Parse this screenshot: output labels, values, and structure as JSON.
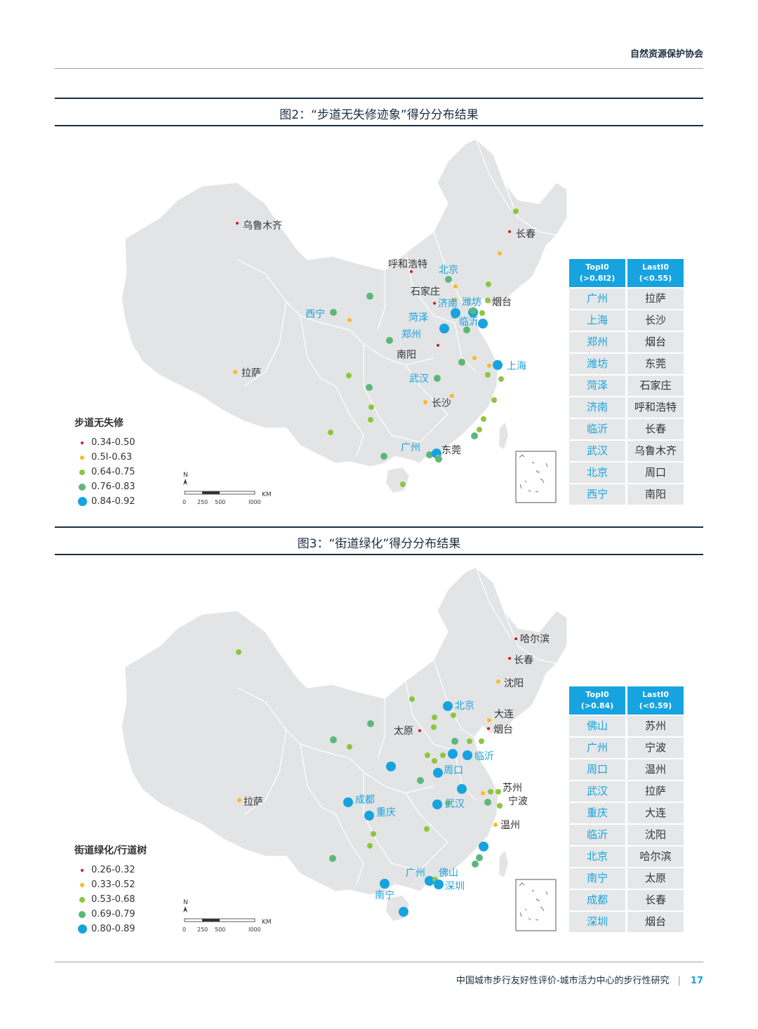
{
  "header": {
    "org": "自然资源保护协会"
  },
  "figure2": {
    "title": "图2：“步道无失修迹象”得分分布结果",
    "legend_title": "步道无失修",
    "legend": [
      {
        "label": "0.34-0.50",
        "color": "#d7191c"
      },
      {
        "label": "0.5I-0.63",
        "color": "#fdb827"
      },
      {
        "label": "0.64-0.75",
        "color": "#8cc63f"
      },
      {
        "label": "0.76-0.83",
        "color": "#5cb87a"
      },
      {
        "label": "0.84-0.92",
        "color": "#16a3e0"
      }
    ],
    "table": {
      "top_header": "TopI0",
      "top_sub": "(>0.8I2)",
      "last_header": "LastI0",
      "last_sub": "(<0.55)",
      "top": [
        "广州",
        "上海",
        "郑州",
        "潍坊",
        "菏泽",
        "济南",
        "临沂",
        "武汉",
        "北京",
        "西宁"
      ],
      "last": [
        "拉萨",
        "长沙",
        "烟台",
        "东莞",
        "石家庄",
        "呼和浩特",
        "长春",
        "乌鲁木齐",
        "周口",
        "南阳"
      ]
    },
    "labels": {
      "urumqi": "乌鲁木齐",
      "changchun": "长春",
      "hohhot": "呼和浩特",
      "beijing": "北京",
      "shijiazhuang": "石家庄",
      "jinan": "济南",
      "weifang": "潍坊",
      "yantai": "烟台",
      "xining": "西宁",
      "heze": "菏泽",
      "linyi": "临沂",
      "zhengzhou": "郑州",
      "nanyang": "南阳",
      "shanghai": "上海",
      "lhasa": "拉萨",
      "wuhan": "武汉",
      "changsha": "长沙",
      "guangzhou": "广州",
      "dongguan": "东莞"
    }
  },
  "figure3": {
    "title": "图3：“街道绿化”得分分布结果",
    "legend_title": "街道绿化/行道树",
    "legend": [
      {
        "label": "0.26-0.32",
        "color": "#d7191c"
      },
      {
        "label": "0.33-0.52",
        "color": "#fdb827"
      },
      {
        "label": "0.53-0.68",
        "color": "#8cc63f"
      },
      {
        "label": "0.69-0.79",
        "color": "#5cb87a"
      },
      {
        "label": "0.80-0.89",
        "color": "#16a3e0"
      }
    ],
    "table": {
      "top_header": "TopI0",
      "top_sub": "(>0.84)",
      "last_header": "LastI0",
      "last_sub": "(<0.59)",
      "top": [
        "佛山",
        "广州",
        "周口",
        "武汉",
        "重庆",
        "临沂",
        "北京",
        "南宁",
        "成都",
        "深圳"
      ],
      "last": [
        "苏州",
        "宁波",
        "温州",
        "拉萨",
        "大连",
        "沈阳",
        "哈尔滨",
        "太原",
        "长春",
        "烟台"
      ]
    },
    "labels": {
      "harbin": "哈尔滨",
      "changchun": "长春",
      "shenyang": "沈阳",
      "beijing": "北京",
      "dalian": "大连",
      "taiyuan": "太原",
      "yantai": "烟台",
      "linyi": "临沂",
      "zhoukou": "周口",
      "suzhou": "苏州",
      "ningbo": "宁波",
      "chengdu": "成都",
      "wuhan": "武汉",
      "lhasa": "拉萨",
      "chongqing": "重庆",
      "wenzhou": "温州",
      "guangzhou": "广州",
      "foshan": "佛山",
      "shenzhen": "深圳",
      "nanning": "南宁"
    }
  },
  "scale": {
    "north": "N",
    "unit": "KM",
    "ticks": [
      "0",
      "250",
      "500",
      "I000"
    ]
  },
  "footer": {
    "title": "中国城市步行友好性评价-城市活力中心的步行性研究",
    "sep": "|",
    "page": "17"
  }
}
